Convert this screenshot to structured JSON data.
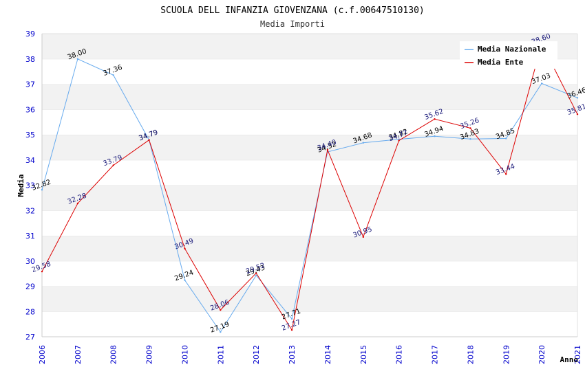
{
  "chart_data": {
    "type": "line",
    "title": "SCUOLA DELL INFANZIA GIOVENZANA (c.f.00647510130)",
    "subtitle": "Media Importi",
    "xlabel": "Anno",
    "ylabel": "Media",
    "ylim": [
      27,
      39
    ],
    "yticks": [
      "27",
      "28",
      "29",
      "30",
      "31",
      "32",
      "33",
      "34",
      "35",
      "36",
      "37",
      "38",
      "39"
    ],
    "categories": [
      "2006",
      "2007",
      "2008",
      "2009",
      "2010",
      "2011",
      "2012",
      "2013",
      "2014",
      "2015",
      "2016",
      "2017",
      "2018",
      "2019",
      "2020",
      "2021"
    ],
    "grid": "horizontal alternating bands",
    "legend_position": "top-right",
    "series": [
      {
        "name": "Media Nazionale",
        "color": "#66aaee",
        "values": [
          32.82,
          38.0,
          37.36,
          34.79,
          29.24,
          27.19,
          29.43,
          27.71,
          34.32,
          34.68,
          34.82,
          34.94,
          34.83,
          34.85,
          37.03,
          36.46
        ],
        "labels": [
          "32.82",
          "38.00",
          "37.36",
          "34.79",
          "29.24",
          "27.19",
          "29.43",
          "27.71",
          "34.32",
          "34.68",
          "34.82",
          "34.94",
          "34.83",
          "34.85",
          "37.03",
          "36.46"
        ]
      },
      {
        "name": "Media Ente",
        "color": "#dd0000",
        "values": [
          29.58,
          32.28,
          33.79,
          34.79,
          30.49,
          28.06,
          29.52,
          27.27,
          34.4,
          30.95,
          34.77,
          35.62,
          35.26,
          33.44,
          38.6,
          35.81
        ],
        "labels": [
          "29.58",
          "32.28",
          "33.79",
          "34.79",
          "30.49",
          "28.06",
          "29.52",
          "27.27",
          "34.40",
          "30.95",
          "34.77",
          "35.62",
          "35.26",
          "33.44",
          "38.60",
          "35.81"
        ]
      }
    ]
  }
}
